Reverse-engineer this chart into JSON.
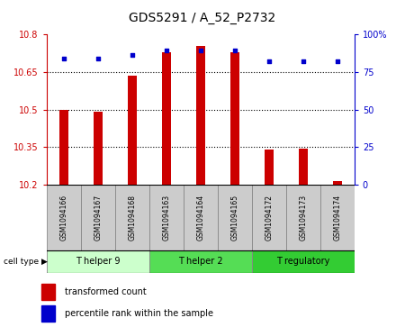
{
  "title": "GDS5291 / A_52_P2732",
  "samples": [
    "GSM1094166",
    "GSM1094167",
    "GSM1094168",
    "GSM1094163",
    "GSM1094164",
    "GSM1094165",
    "GSM1094172",
    "GSM1094173",
    "GSM1094174"
  ],
  "bar_values": [
    10.5,
    10.49,
    10.635,
    10.73,
    10.755,
    10.73,
    10.34,
    10.345,
    10.215
  ],
  "bar_base": 10.2,
  "percentile_values": [
    84,
    84,
    86,
    89,
    89,
    89,
    82,
    82,
    82
  ],
  "ylim_left": [
    10.2,
    10.8
  ],
  "ylim_right": [
    0,
    100
  ],
  "yticks_left": [
    10.2,
    10.35,
    10.5,
    10.65,
    10.8
  ],
  "ytick_labels_left": [
    "10.2",
    "10.35",
    "10.5",
    "10.65",
    "10.8"
  ],
  "yticks_right": [
    0,
    25,
    50,
    75,
    100
  ],
  "ytick_labels_right": [
    "0",
    "25",
    "50",
    "75",
    "100%"
  ],
  "bar_color": "#cc0000",
  "dot_color": "#0000cc",
  "cell_types": [
    {
      "label": "T helper 9",
      "start": 0,
      "end": 3,
      "color": "#ccffcc"
    },
    {
      "label": "T helper 2",
      "start": 3,
      "end": 6,
      "color": "#55dd55"
    },
    {
      "label": "T regulatory",
      "start": 6,
      "end": 9,
      "color": "#33cc33"
    }
  ],
  "cell_type_label": "cell type",
  "legend_bar_label": "transformed count",
  "legend_dot_label": "percentile rank within the sample",
  "sample_box_color": "#cccccc",
  "plot_bg_color": "#ffffff",
  "bar_width": 0.25
}
